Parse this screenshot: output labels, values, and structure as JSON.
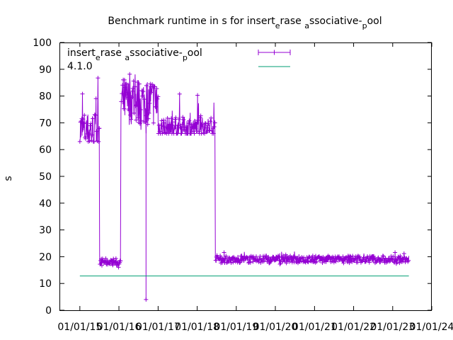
{
  "chart_data": {
    "type": "line",
    "title": "Benchmark runtime in s for insert_erase_associative-_pool",
    "title_display": {
      "base": "Benchmark runtime in s for insert",
      "parts": [
        [
          "e",
          "sub"
        ],
        [
          "rase ",
          ""
        ],
        [
          "a",
          "sub"
        ],
        [
          "ssociative-",
          ""
        ],
        [
          "p",
          "sub"
        ],
        [
          "ool",
          ""
        ]
      ]
    },
    "xlabel": "",
    "ylabel": "s",
    "ylim": [
      0,
      100
    ],
    "yticks": [
      "0",
      "10",
      "20",
      "30",
      "40",
      "50",
      "60",
      "70",
      "80",
      "90",
      "100"
    ],
    "xticks": [
      "01/01/15",
      "01/01/16",
      "01/01/17",
      "01/01/18",
      "01/01/19",
      "01/01/20",
      "01/01/21",
      "01/01/22",
      "01/01/23",
      "01/01/24"
    ],
    "legend_placement": "top-left",
    "series": [
      {
        "name": "insert_erase_associative-_pool",
        "name_display": {
          "base": "insert",
          "parts": [
            [
              "e",
              "sub"
            ],
            [
              "rase ",
              ""
            ],
            [
              "a",
              "sub"
            ],
            [
              "ssociative-",
              ""
            ],
            [
              "p",
              "sub"
            ],
            [
              "ool",
              ""
            ]
          ]
        },
        "color": "#9400d3",
        "marker": "plus",
        "segments": [
          {
            "x": [
              "2015-01-01",
              "2015-07-01"
            ],
            "y_center": 67,
            "y_range": [
              63,
              89
            ]
          },
          {
            "x": [
              "2015-07-05",
              "2016-01-15"
            ],
            "y_center": 18,
            "y_range": [
              16,
              21
            ]
          },
          {
            "x": [
              "2016-01-20",
              "2016-12-31"
            ],
            "y_center": 78,
            "y_range": [
              66,
              98
            ]
          },
          {
            "x": [
              "2017-01-01",
              "2018-06-15"
            ],
            "y_center": 68,
            "y_range": [
              66,
              81
            ]
          },
          {
            "x": [
              "2018-06-20",
              "2023-06-01"
            ],
            "y_center": 19,
            "y_range": [
              17,
              22
            ]
          }
        ],
        "outlier": {
          "x": "2016-09-10",
          "y": 4
        }
      },
      {
        "name": "4.1.0",
        "color": "#009e73",
        "marker": "none",
        "points": [
          [
            "2015-01-01",
            12.8
          ],
          [
            "2023-06-01",
            12.8
          ]
        ]
      }
    ]
  }
}
